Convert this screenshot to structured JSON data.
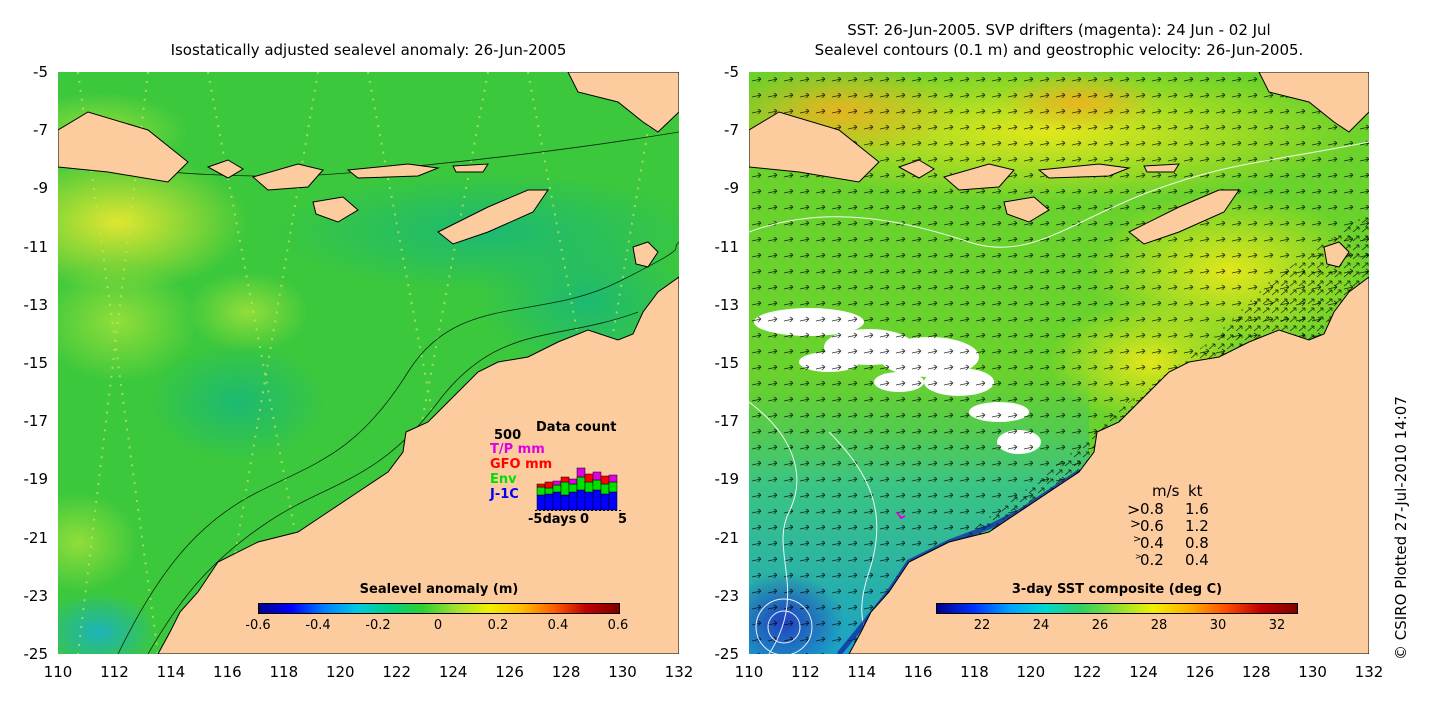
{
  "left_panel": {
    "title": "Isostatically adjusted sealevel anomaly: 26-Jun-2005",
    "colorbar": {
      "title": "Sealevel anomaly (m)",
      "ticks": [
        "-0.6",
        "-0.4",
        "-0.2",
        "0",
        "0.2",
        "0.4",
        "0.6"
      ]
    },
    "data_count": {
      "title": "Data count",
      "max_label": "500",
      "legend": [
        {
          "label": "T/P mm",
          "color": "#e000e0"
        },
        {
          "label": "GFO mm",
          "color": "#ff0000"
        },
        {
          "label": "Env",
          "color": "#00e000"
        },
        {
          "label": "J-1C",
          "color": "#0000ff"
        }
      ],
      "axis_labels": [
        "-5days",
        "0",
        "5"
      ]
    }
  },
  "right_panel": {
    "title_line1": "SST: 26-Jun-2005. SVP drifters (magenta): 24 Jun - 02 Jul",
    "title_line2": "Sealevel contours (0.1 m) and geostrophic velocity: 26-Jun-2005.",
    "colorbar": {
      "title": "3-day SST composite (deg C)",
      "ticks": [
        "22",
        "24",
        "26",
        "28",
        "30",
        "32"
      ]
    },
    "velocity_legend": {
      "header_ms": "m/s",
      "header_kt": "kt",
      "rows": [
        {
          "ms": "0.8",
          "kt": "1.6"
        },
        {
          "ms": "0.6",
          "kt": "1.2"
        },
        {
          "ms": "0.4",
          "kt": "0.8"
        },
        {
          "ms": "0.2",
          "kt": "0.4"
        }
      ]
    }
  },
  "axes": {
    "lat_ticks": [
      "-5",
      "-7",
      "-9",
      "-11",
      "-13",
      "-15",
      "-17",
      "-19",
      "-21",
      "-23",
      "-25"
    ],
    "lon_ticks": [
      "110",
      "112",
      "114",
      "116",
      "118",
      "120",
      "122",
      "124",
      "126",
      "128",
      "130",
      "132"
    ]
  },
  "copyright": "© CSIRO Plotted 27-Jul-2010 14:07",
  "colors": {
    "land": "#fdcc9e",
    "sla_base": "#3cc83c",
    "sst_base": "#6ad22c"
  }
}
